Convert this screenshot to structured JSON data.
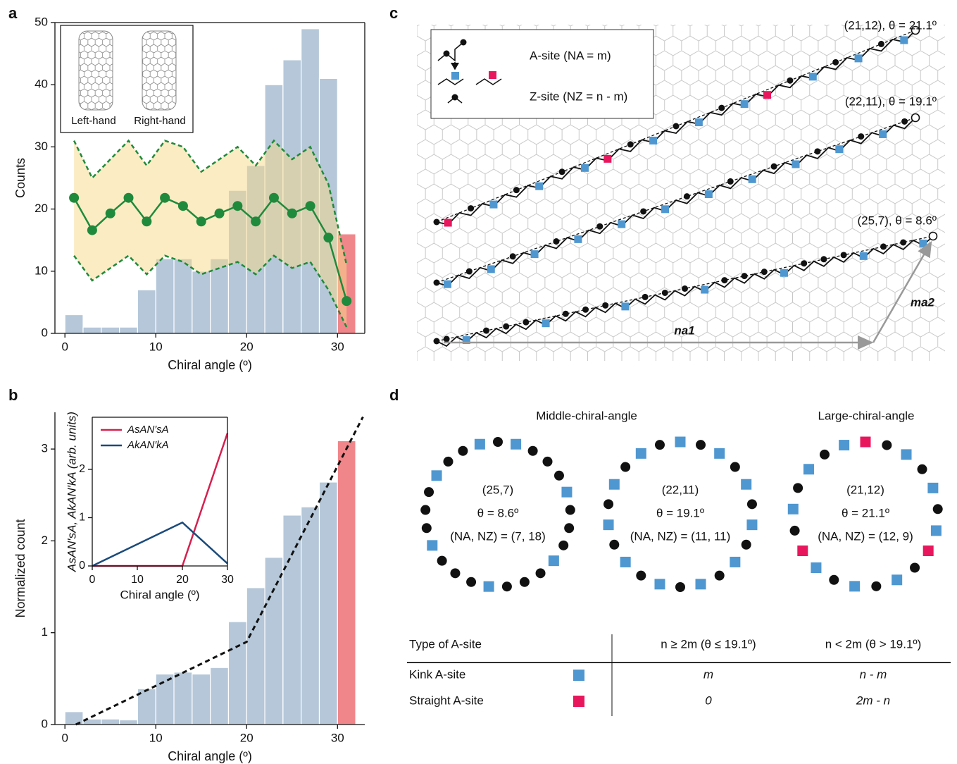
{
  "panel_labels": [
    "a",
    "b",
    "c",
    "d"
  ],
  "chart_data": [
    {
      "type": "histogram",
      "xlabel": "Chiral angle (º)",
      "ylabel": "Counts",
      "bins": [
        0,
        2,
        4,
        6,
        8,
        10,
        12,
        14,
        16,
        18,
        20,
        22,
        24,
        26,
        28,
        30,
        32
      ],
      "values": [
        3,
        1,
        1,
        1,
        7,
        12,
        12,
        10,
        12,
        23,
        27,
        40,
        44,
        49,
        41,
        16
      ],
      "bar_colors": [
        "#b5c7d9",
        "#b5c7d9",
        "#b5c7d9",
        "#b5c7d9",
        "#b5c7d9",
        "#b5c7d9",
        "#b5c7d9",
        "#b5c7d9",
        "#b5c7d9",
        "#b5c7d9",
        "#b5c7d9",
        "#b5c7d9",
        "#b5c7d9",
        "#b5c7d9",
        "#b5c7d9",
        "#f0868a"
      ],
      "line": {
        "x": [
          1,
          3,
          5,
          7,
          9,
          11,
          13,
          15,
          17,
          19,
          21,
          23,
          25,
          27,
          29,
          31
        ],
        "values": [
          21.8,
          16.6,
          19.3,
          21.8,
          18,
          21.8,
          20.5,
          18,
          19.3,
          20.5,
          18,
          21.8,
          19.3,
          20.5,
          15.4,
          5.2
        ],
        "upper": [
          31,
          25,
          28,
          31,
          27,
          31,
          30,
          26,
          28,
          30,
          27,
          31,
          28,
          30,
          24,
          11
        ],
        "lower": [
          12.5,
          8.5,
          10.5,
          12.5,
          9.5,
          12.5,
          11.5,
          9.5,
          10.5,
          11.5,
          9.5,
          12.5,
          10.5,
          11.5,
          7,
          1
        ],
        "color": "#1f8a3b",
        "band_color": "#f8d98a"
      },
      "xlim": [
        -1.1,
        33
      ],
      "ylim": [
        0,
        50
      ],
      "xticks": [
        0,
        10,
        20,
        30
      ],
      "yticks": [
        0,
        10,
        20,
        30,
        40,
        50
      ],
      "frame": true,
      "inset_labels": [
        "Left-hand",
        "Right-hand"
      ]
    },
    {
      "type": "histogram",
      "xlabel": "Chiral angle (º)",
      "ylabel": "Normalized count",
      "bins": [
        0,
        2,
        4,
        6,
        8,
        10,
        12,
        14,
        16,
        18,
        20,
        22,
        24,
        26,
        28,
        30,
        32
      ],
      "values": [
        0.14,
        0.06,
        0.06,
        0.05,
        0.39,
        0.55,
        0.57,
        0.55,
        0.62,
        1.12,
        1.49,
        1.82,
        2.28,
        2.37,
        2.64,
        3.09
      ],
      "bar_colors": [
        "#b5c7d9",
        "#b5c7d9",
        "#b5c7d9",
        "#b5c7d9",
        "#b5c7d9",
        "#b5c7d9",
        "#b5c7d9",
        "#b5c7d9",
        "#b5c7d9",
        "#b5c7d9",
        "#b5c7d9",
        "#b5c7d9",
        "#b5c7d9",
        "#b5c7d9",
        "#b5c7d9",
        "#f0868a"
      ],
      "fit": {
        "x": [
          1.2,
          20,
          32.8
        ],
        "values": [
          0,
          0.9,
          3.35
        ],
        "color": "#111"
      },
      "xlim": [
        -1.1,
        33
      ],
      "ylim": [
        0,
        3.4
      ],
      "xticks": [
        0,
        10,
        20,
        30
      ],
      "yticks": [
        0,
        1,
        2,
        3
      ],
      "frame": false
    },
    {
      "type": "line",
      "xlabel": "Chiral angle (º)",
      "ylabel": "AsAN′sA, AkAN′kA (arb. units)",
      "x": [
        0,
        20,
        30
      ],
      "series": [
        {
          "name": "AsAN′sA",
          "color": "#d6204f",
          "values": [
            0,
            0,
            2.75
          ]
        },
        {
          "name": "AkAN′kA",
          "color": "#1a4a7a",
          "values": [
            0,
            0.9,
            0.05
          ]
        }
      ],
      "xlim": [
        0,
        30
      ],
      "ylim": [
        0,
        3.08
      ],
      "xticks": [
        0,
        10,
        20,
        30
      ],
      "yticks": [
        0,
        1,
        2
      ],
      "frame": true
    }
  ],
  "lattice": {
    "chiralities": [
      "(21,12), θ = 21.1º",
      "(22,11), θ = 19.1º",
      "(25,7), θ = 8.6º"
    ],
    "legend": [
      "A-site (NA = m)",
      "Z-site (NZ = n - m)"
    ],
    "vectors": [
      "na1",
      "ma2"
    ]
  },
  "rings": {
    "groups": [
      "Middle-chiral-angle",
      "Large-chiral-angle"
    ],
    "items": [
      {
        "indices": "(25,7)",
        "angle": "θ = 8.6º",
        "sites": "(NA, NZ) = (7, 18)"
      },
      {
        "indices": "(22,11)",
        "angle": "θ = 19.1º",
        "sites": "(NA, NZ) = (11, 11)"
      },
      {
        "indices": "(21,12)",
        "angle": "θ = 21.1º",
        "sites": "(NA, NZ) = (12, 9)"
      }
    ],
    "colors": {
      "kink": "#4f97d0",
      "straight": "#e8175d",
      "zigzag": "#111"
    }
  },
  "table": {
    "header": [
      "Type of A-site",
      "n ≥ 2m (θ ≤ 19.1º)",
      "n < 2m (θ > 19.1º)"
    ],
    "rows": [
      [
        "Kink A-site",
        "m",
        "n - m"
      ],
      [
        "Straight A-site",
        "0",
        "2m - n"
      ]
    ]
  }
}
